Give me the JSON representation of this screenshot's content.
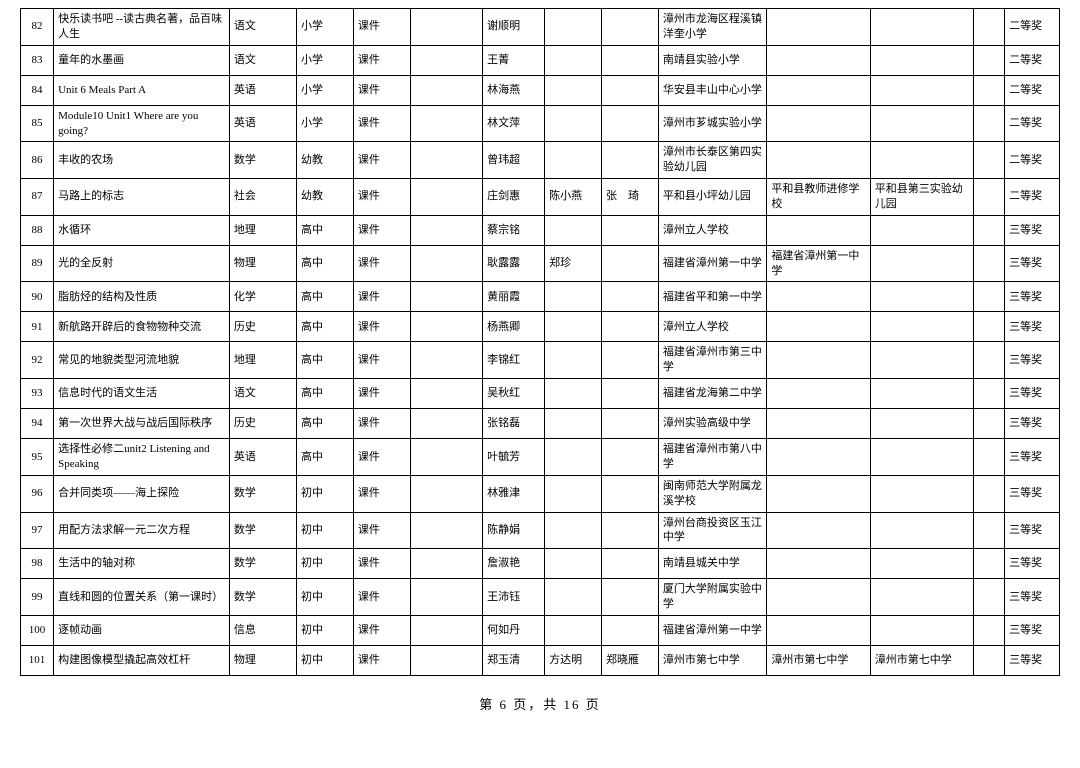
{
  "footer": "第 6 页，共 16 页",
  "rows": [
    {
      "n": "82",
      "title": "快乐读书吧 --读古典名著，品百味人生",
      "subj": "语文",
      "lvl": "小学",
      "type": "课件",
      "a1": "谢顺明",
      "a2": "",
      "a3": "",
      "s1": "漳州市龙海区程溪镇洋奎小学",
      "s2": "",
      "s3": "",
      "aw": "二等奖"
    },
    {
      "n": "83",
      "title": "童年的水墨画",
      "subj": "语文",
      "lvl": "小学",
      "type": "课件",
      "a1": "王菁",
      "a2": "",
      "a3": "",
      "s1": "南靖县实验小学",
      "s2": "",
      "s3": "",
      "aw": "二等奖"
    },
    {
      "n": "84",
      "title": "Unit 6 Meals Part A",
      "subj": "英语",
      "lvl": "小学",
      "type": "课件",
      "a1": "林海燕",
      "a2": "",
      "a3": "",
      "s1": "华安县丰山中心小学",
      "s2": "",
      "s3": "",
      "aw": "二等奖"
    },
    {
      "n": "85",
      "title": "Module10  Unit1 Where are you going?",
      "subj": "英语",
      "lvl": "小学",
      "type": "课件",
      "a1": "林文萍",
      "a2": "",
      "a3": "",
      "s1": "漳州市芗城实验小学",
      "s2": "",
      "s3": "",
      "aw": "二等奖"
    },
    {
      "n": "86",
      "title": "丰收的农场",
      "subj": "数学",
      "lvl": "幼教",
      "type": "课件",
      "a1": "曾玮超",
      "a2": "",
      "a3": "",
      "s1": "漳州市长泰区第四实验幼儿园",
      "s2": "",
      "s3": "",
      "aw": "二等奖"
    },
    {
      "n": "87",
      "title": "马路上的标志",
      "subj": "社会",
      "lvl": "幼教",
      "type": "课件",
      "a1": "庄剑惠",
      "a2": "陈小燕",
      "a3": "张　琦",
      "s1": "平和县小坪幼儿园",
      "s2": "平和县教师进修学校",
      "s3": "平和县第三实验幼儿园",
      "aw": "二等奖"
    },
    {
      "n": "88",
      "title": "水循环",
      "subj": "地理",
      "lvl": "高中",
      "type": "课件",
      "a1": "蔡宗铭",
      "a2": "",
      "a3": "",
      "s1": "漳州立人学校",
      "s2": "",
      "s3": "",
      "aw": "三等奖"
    },
    {
      "n": "89",
      "title": "光的全反射",
      "subj": "物理",
      "lvl": "高中",
      "type": "课件",
      "a1": "耿露露",
      "a2": "郑珍",
      "a3": "",
      "s1": "福建省漳州第一中学",
      "s2": "福建省漳州第一中学",
      "s3": "",
      "aw": "三等奖"
    },
    {
      "n": "90",
      "title": "脂肪烃的结构及性质",
      "subj": "化学",
      "lvl": "高中",
      "type": "课件",
      "a1": "黄丽霞",
      "a2": "",
      "a3": "",
      "s1": "福建省平和第一中学",
      "s2": "",
      "s3": "",
      "aw": "三等奖"
    },
    {
      "n": "91",
      "title": "新航路开辟后的食物物种交流",
      "subj": "历史",
      "lvl": "高中",
      "type": "课件",
      "a1": "杨燕卿",
      "a2": "",
      "a3": "",
      "s1": "漳州立人学校",
      "s2": "",
      "s3": "",
      "aw": "三等奖"
    },
    {
      "n": "92",
      "title": "常见的地貌类型河流地貌",
      "subj": "地理",
      "lvl": "高中",
      "type": "课件",
      "a1": "李锦红",
      "a2": "",
      "a3": "",
      "s1": "福建省漳州市第三中学",
      "s2": "",
      "s3": "",
      "aw": "三等奖"
    },
    {
      "n": "93",
      "title": "信息时代的语文生活",
      "subj": "语文",
      "lvl": "高中",
      "type": "课件",
      "a1": "吴秋红",
      "a2": "",
      "a3": "",
      "s1": "福建省龙海第二中学",
      "s2": "",
      "s3": "",
      "aw": "三等奖"
    },
    {
      "n": "94",
      "title": "第一次世界大战与战后国际秩序",
      "subj": "历史",
      "lvl": "高中",
      "type": "课件",
      "a1": "张铭磊",
      "a2": "",
      "a3": "",
      "s1": "漳州实验高级中学",
      "s2": "",
      "s3": "",
      "aw": "三等奖"
    },
    {
      "n": "95",
      "title": "选择性必修二unit2 Listening and Speaking",
      "subj": "英语",
      "lvl": "高中",
      "type": "课件",
      "a1": "叶毓芳",
      "a2": "",
      "a3": "",
      "s1": "福建省漳州市第八中学",
      "s2": "",
      "s3": "",
      "aw": "三等奖"
    },
    {
      "n": "96",
      "title": "合并同类项——海上探险",
      "subj": "数学",
      "lvl": "初中",
      "type": "课件",
      "a1": "林雅津",
      "a2": "",
      "a3": "",
      "s1": "闽南师范大学附属龙溪学校",
      "s2": "",
      "s3": "",
      "aw": "三等奖"
    },
    {
      "n": "97",
      "title": "用配方法求解一元二次方程",
      "subj": "数学",
      "lvl": "初中",
      "type": "课件",
      "a1": "陈静娟",
      "a2": "",
      "a3": "",
      "s1": "漳州台商投资区玉江中学",
      "s2": "",
      "s3": "",
      "aw": "三等奖"
    },
    {
      "n": "98",
      "title": "生活中的轴对称",
      "subj": "数学",
      "lvl": "初中",
      "type": "课件",
      "a1": "詹淑艳",
      "a2": "",
      "a3": "",
      "s1": "南靖县城关中学",
      "s2": "",
      "s3": "",
      "aw": "三等奖"
    },
    {
      "n": "99",
      "title": "直线和圆的位置关系（第一课时）",
      "subj": "数学",
      "lvl": "初中",
      "type": "课件",
      "a1": "王沛钰",
      "a2": "",
      "a3": "",
      "s1": "厦门大学附属实验中学",
      "s2": "",
      "s3": "",
      "aw": "三等奖"
    },
    {
      "n": "100",
      "title": "逐帧动画",
      "subj": "信息",
      "lvl": "初中",
      "type": "课件",
      "a1": "何如丹",
      "a2": "",
      "a3": "",
      "s1": "福建省漳州第一中学",
      "s2": "",
      "s3": "",
      "aw": "三等奖"
    },
    {
      "n": "101",
      "title": "构建图像模型撬起高效杠杆",
      "subj": "物理",
      "lvl": "初中",
      "type": "课件",
      "a1": "郑玉清",
      "a2": "方达明",
      "a3": "郑晓雁",
      "s1": "漳州市第七中学",
      "s2": "漳州市第七中学",
      "s3": "漳州市第七中学",
      "aw": "三等奖"
    }
  ]
}
